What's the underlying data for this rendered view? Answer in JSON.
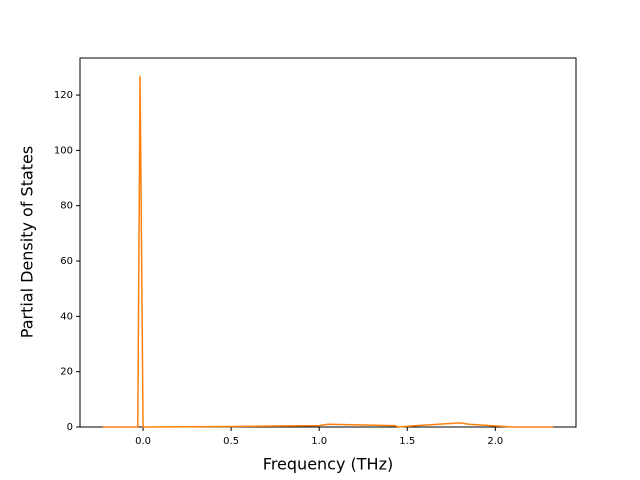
{
  "chart_data": {
    "type": "line",
    "xlabel": "Frequency (THz)",
    "ylabel": "Partial Density of States",
    "x": [
      -0.23,
      -0.03,
      -0.017,
      0.0,
      0.5,
      1.0,
      1.05,
      1.43,
      1.45,
      1.55,
      1.8,
      1.85,
      2.1,
      2.33
    ],
    "series": [
      {
        "color": "#ff7f0e",
        "values": [
          0,
          0,
          127,
          0,
          0.2,
          0.5,
          1,
          0.5,
          0,
          0.5,
          1.5,
          1,
          0,
          0
        ]
      }
    ],
    "xlim": [
      -0.358,
      2.458
    ],
    "ylim": [
      0,
      133.4
    ],
    "xticks": [
      {
        "value": 0,
        "label": "0.0"
      },
      0.5,
      {
        "value": 1,
        "label": "1.0"
      },
      1.5,
      {
        "value": 2,
        "label": "2.0"
      }
    ],
    "yticks": [
      0,
      20,
      40,
      60,
      80,
      100,
      120
    ]
  }
}
